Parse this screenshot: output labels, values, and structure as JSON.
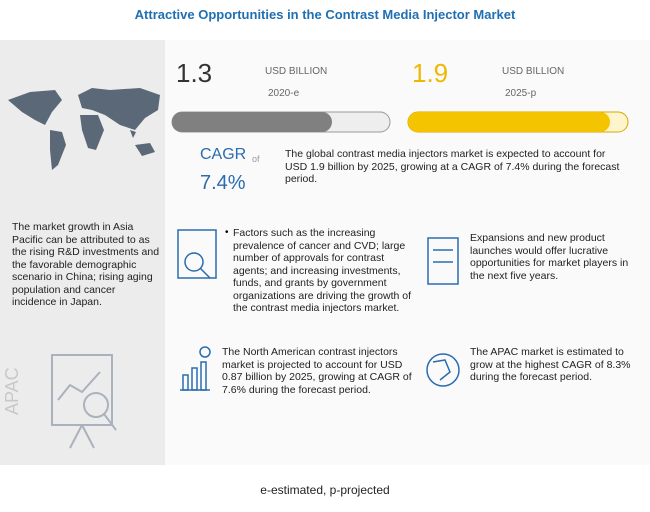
{
  "header": {
    "title": "Attractive Opportunities in the Contrast Media Injector Market"
  },
  "sidebar": {
    "text": "The market growth in Asia Pacific can be attributed to as the rising R&D investments and the favorable demographic scenario in China; rising aging population and cancer incidence in Japan.",
    "region": "APAC"
  },
  "stats": [
    {
      "value": "1.3",
      "unit": "USD BILLION",
      "year": "2020-e"
    },
    {
      "value": "1.9",
      "unit": "USD BILLION",
      "year": "2025-p"
    }
  ],
  "cagr": {
    "label": "CAGR",
    "of": "of",
    "value": "7.4%"
  },
  "summary": "The global contrast media injectors market is expected to account for USD 1.9 billion by 2025, growing at a CAGR of 7.4% during the forecast period.",
  "insights": [
    "Factors such as the increasing prevalence of cancer and CVD; large number of approvals for contrast agents; and increasing investments, funds, and grants by government organizations are driving the growth of the contrast media injectors market.",
    "Expansions and new product launches would offer lucrative opportunities for market players in the next five years.",
    "The North American contrast injectors market is projected to account for USD 0.87 billion by 2025, growing at CAGR of 7.6% during the forecast period.",
    "The APAC market is estimated to grow at the highest CAGR of 8.3% during the forecast period."
  ],
  "footnote": "e-estimated, p-projected"
}
